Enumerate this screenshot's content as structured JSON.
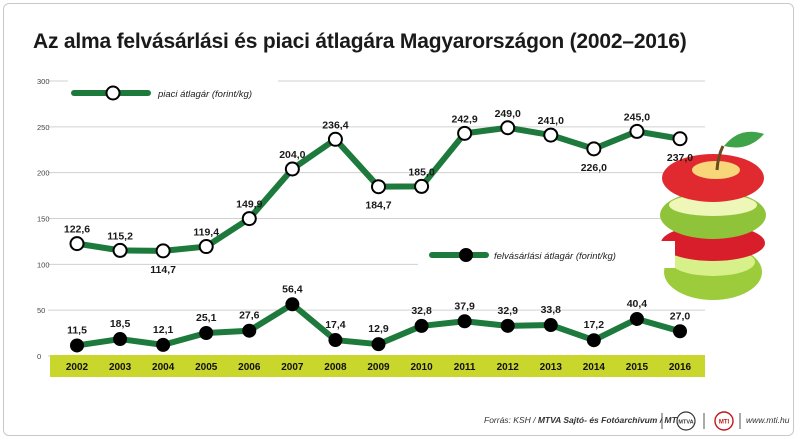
{
  "title": "Az alma felvásárlási és piaci átlagára Magyarországon (2002–2016)",
  "footer": {
    "source_prefix": "Forrás: KSH / ",
    "source_bold": "MTVA Sajtó- és Fotóarchívum / MTI",
    "website": "www.mti.hu",
    "logo_1_text": "MTVA",
    "logo_2_text": "MTI"
  },
  "colors": {
    "line": "#1e7a3c",
    "year_band": "#c9d62b",
    "grid": "#d0d0d0"
  },
  "chart_data": {
    "type": "line",
    "title": "Az alma felvásárlási és piaci átlagára Magyarországon (2002–2016)",
    "x": [
      "2002",
      "2003",
      "2004",
      "2005",
      "2006",
      "2007",
      "2008",
      "2009",
      "2010",
      "2011",
      "2012",
      "2013",
      "2014",
      "2015",
      "2016"
    ],
    "yticks": [
      "0",
      "50",
      "100",
      "150",
      "200",
      "250",
      "300"
    ],
    "ylim": [
      0,
      300
    ],
    "grid": true,
    "series": [
      {
        "name": "piaci átlagár (forint/kg)",
        "marker": "open-circle",
        "values": [
          122.6,
          115.2,
          114.7,
          119.4,
          149.9,
          204.0,
          236.4,
          184.7,
          185.0,
          242.9,
          249.0,
          241.0,
          226.0,
          245.0,
          237.0
        ],
        "labels": [
          "122,6",
          "115,2",
          "114,7",
          "119,4",
          "149,9",
          "204,0",
          "236,4",
          "184,7",
          "185,0",
          "242,9",
          "249,0",
          "241,0",
          "226,0",
          "245,0",
          "237,0"
        ]
      },
      {
        "name": "felvásárlási átlagár (forint/kg)",
        "marker": "filled-circle",
        "values": [
          11.5,
          18.5,
          12.1,
          25.1,
          27.6,
          56.4,
          17.4,
          12.9,
          32.8,
          37.9,
          32.9,
          33.8,
          17.2,
          40.4,
          27.0
        ],
        "labels": [
          "11,5",
          "18,5",
          "12,1",
          "25,1",
          "27,6",
          "56,4",
          "17,4",
          "12,9",
          "32,8",
          "37,9",
          "32,9",
          "33,8",
          "17,2",
          "40,4",
          "27,0"
        ]
      }
    ]
  }
}
